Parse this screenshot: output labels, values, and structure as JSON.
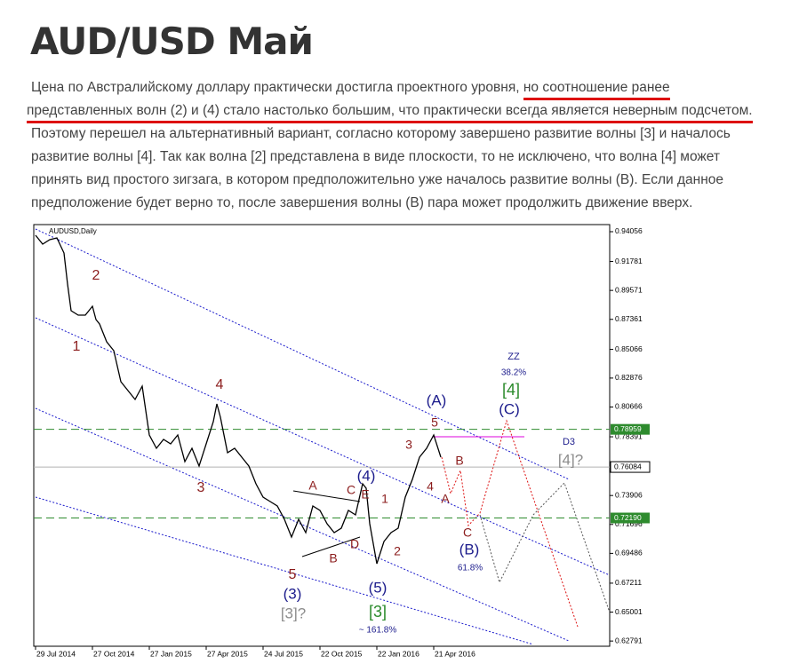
{
  "header": {
    "title": "AUD/USD Май"
  },
  "paragraph": {
    "lines": [
      [
        "Цена по Австралийскому доллару практически достигла проектного уровня, ",
        "но соотношение ранее"
      ],
      [
        "представленных волн (2) и (4) стало настолько большим, что практически всегда является неверным подсчетом."
      ],
      [
        "Поэтому перешел на альтернативный вариант, согласно которому завершено развитие волны [3] и началось"
      ],
      [
        "развитие волны [4]. Так как волна [2] представлена в виде плоскости, то не исключено, что волна [4] может"
      ],
      [
        "принять вид простого зигзага, в котором предположительно уже началось развитие волны (B). Если данное"
      ],
      [
        "предположение будет верно то, после завершения волны (B) пара может продолжить движение вверх."
      ]
    ]
  },
  "chart_data": {
    "type": "line",
    "symbol": "AUDUSD,Daily",
    "x": [
      0,
      0.125,
      0.25,
      0.375,
      0.5,
      0.5625,
      0.625,
      0.75,
      0.875,
      1,
      1.0625,
      1.125,
      1.25,
      1.375,
      1.5,
      1.625,
      1.75,
      1.875,
      2,
      2.125,
      2.25,
      2.375,
      2.5,
      2.625,
      2.75,
      2.875,
      3,
      3.125,
      3.1875,
      3.25,
      3.375,
      3.5,
      3.625,
      3.75,
      3.875,
      4,
      4.125,
      4.25,
      4.375,
      4.5,
      4.625,
      4.75,
      4.875,
      5,
      5.125,
      5.25,
      5.375,
      5.5,
      5.625,
      5.75,
      5.8125,
      5.875,
      6,
      6.125,
      6.25,
      6.375,
      6.5,
      6.625,
      6.75,
      6.875,
      7,
      7.125
    ],
    "series": [
      {
        "color": "#000000",
        "values": [
          0.93785,
          0.93107,
          0.93446,
          0.93581,
          0.92429,
          0.90056,
          0.88022,
          0.87683,
          0.87683,
          0.88361,
          0.87344,
          0.87005,
          0.85649,
          0.84971,
          0.82598,
          0.8192,
          0.81242,
          0.82259,
          0.7853,
          0.77513,
          0.78191,
          0.77852,
          0.7853,
          0.76496,
          0.77513,
          0.76157,
          0.77852,
          0.79547,
          0.80903,
          0.79886,
          0.77174,
          0.77513,
          0.76835,
          0.76157,
          0.74801,
          0.73784,
          0.73445,
          0.73106,
          0.72089,
          0.70733,
          0.72089,
          0.71072,
          0.73106,
          0.72767,
          0.7175,
          0.71072,
          0.71411,
          0.72767,
          0.72428,
          0.74801,
          0.74462,
          0.7175,
          0.68699,
          0.70394,
          0.71072,
          0.71411,
          0.73784,
          0.7514,
          0.76835,
          0.77513,
          0.7853,
          0.76835
        ]
      }
    ],
    "xlim": [
      -0.03125,
      10.09375
    ],
    "xticks": [
      {
        "value": 0,
        "label": "29 Jul 2014"
      },
      {
        "value": 1,
        "label": "27 Oct 2014"
      },
      {
        "value": 2,
        "label": "27 Jan 2015"
      },
      {
        "value": 3,
        "label": "27 Apr 2015"
      },
      {
        "value": 4,
        "label": "24 Jul 2015"
      },
      {
        "value": 5,
        "label": "22 Oct 2015"
      },
      {
        "value": 6,
        "label": "22 Jan 2016"
      },
      {
        "value": 7,
        "label": "21 Apr 2016"
      }
    ],
    "ylim": [
      0.62393,
      0.94598
    ],
    "yticks": [
      0.94056,
      0.91781,
      0.89571,
      0.87361,
      0.85066,
      0.82876,
      0.80666,
      0.78391,
      0.73906,
      0.71696,
      0.69486,
      0.67211,
      0.65001,
      0.62791
    ],
    "levels": [
      {
        "value": 0.78959,
        "color": "#2e8b2e"
      },
      {
        "value": 0.76084,
        "color": "#b0b0b0"
      },
      {
        "value": {
          "value": 0.7219,
          "label": "0.72190"
        },
        "color": "#2e8b2e"
      }
    ],
    "annotations": [
      {
        "text": "2",
        "color": "#8b1c1c"
      },
      {
        "text": "1",
        "color": "#8b1c1c"
      },
      {
        "text": "3",
        "color": "#8b1c1c"
      },
      {
        "text": "4",
        "color": "#8b1c1c"
      },
      {
        "text": "5",
        "color": "#8b1c1c"
      },
      {
        "text": "(3)",
        "color": "#1c1c8c"
      },
      {
        "text": "[3]?",
        "color": "#8c8c8c"
      },
      {
        "text": "A",
        "color": "#8b1c1c"
      },
      {
        "text": "B",
        "color": "#8b1c1c"
      },
      {
        "text": "C",
        "color": "#8b1c1c"
      },
      {
        "text": "E",
        "color": "#8b1c1c"
      },
      {
        "text": "D",
        "color": "#8b1c1c"
      },
      {
        "text": "(4)",
        "color": "#1c1c8c"
      },
      {
        "text": "1",
        "color": "#8b1c1c"
      },
      {
        "text": "2",
        "color": "#8b1c1c"
      },
      {
        "text": "(5)",
        "color": "#1c1c8c"
      },
      {
        "text": "[3]",
        "color": "#2a8a2a"
      },
      {
        "text": "~ 161.8%",
        "color": "#1c1c8c"
      },
      {
        "text": "3",
        "color": "#8b1c1c"
      },
      {
        "text": "5",
        "color": "#8b1c1c"
      },
      {
        "text": "(A)",
        "color": "#1c1c8c"
      },
      {
        "text": "4",
        "color": "#8b1c1c"
      },
      {
        "text": "A",
        "color": "#8b1c1c"
      },
      {
        "text": "B",
        "color": "#8b1c1c"
      },
      {
        "text": "C",
        "color": "#8b1c1c"
      },
      {
        "text": "(B)",
        "color": "#1c1c8c"
      },
      {
        "text": "61.8%",
        "color": "#1c1c8c"
      },
      {
        "text": "ZZ",
        "color": "#1c1c8c"
      },
      {
        "text": "38.2%",
        "color": "#1c1c8c"
      },
      {
        "text": "[4]",
        "color": "#2a8a2a"
      },
      {
        "text": "(C)",
        "color": "#1c1c8c"
      },
      {
        "text": "D3",
        "color": "#1c1c8c"
      },
      {
        "text": "[4]?",
        "color": "#8c8c8c"
      }
    ]
  }
}
